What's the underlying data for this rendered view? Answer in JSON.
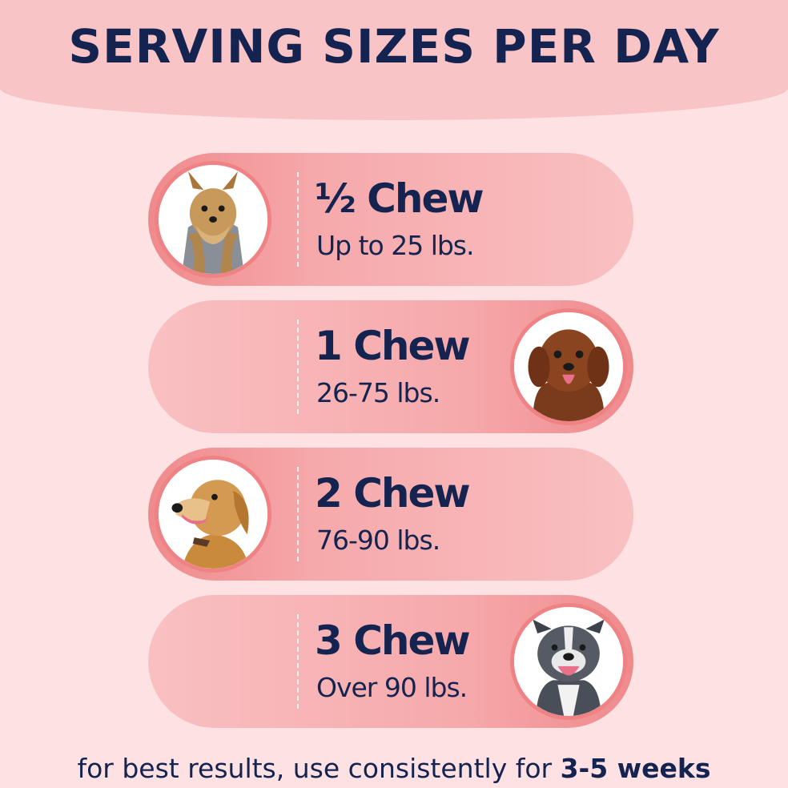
{
  "title": "SERVING SIZES PER DAY",
  "servings": [
    {
      "dose": "½ Chew",
      "weight": "Up to 25 lbs.",
      "photo": "yorkie-dog-photo"
    },
    {
      "dose": "1 Chew",
      "weight": "26-75 lbs.",
      "photo": "doodle-dog-photo"
    },
    {
      "dose": "2 Chew",
      "weight": "76-90 lbs.",
      "photo": "golden-retriever-photo"
    },
    {
      "dose": "3 Chew",
      "weight": "Over 90 lbs.",
      "photo": "pitbull-dog-photo"
    }
  ],
  "footer": {
    "text": "for best results, use consistently for ",
    "emphasis": "3-5 weeks"
  },
  "colors": {
    "background": "#fde1e3",
    "header_band": "#f8c4c6",
    "pill_dark": "#ef8a8c",
    "pill_light": "#f9c0c2",
    "ring": "#ee8285",
    "text": "#14234f"
  }
}
